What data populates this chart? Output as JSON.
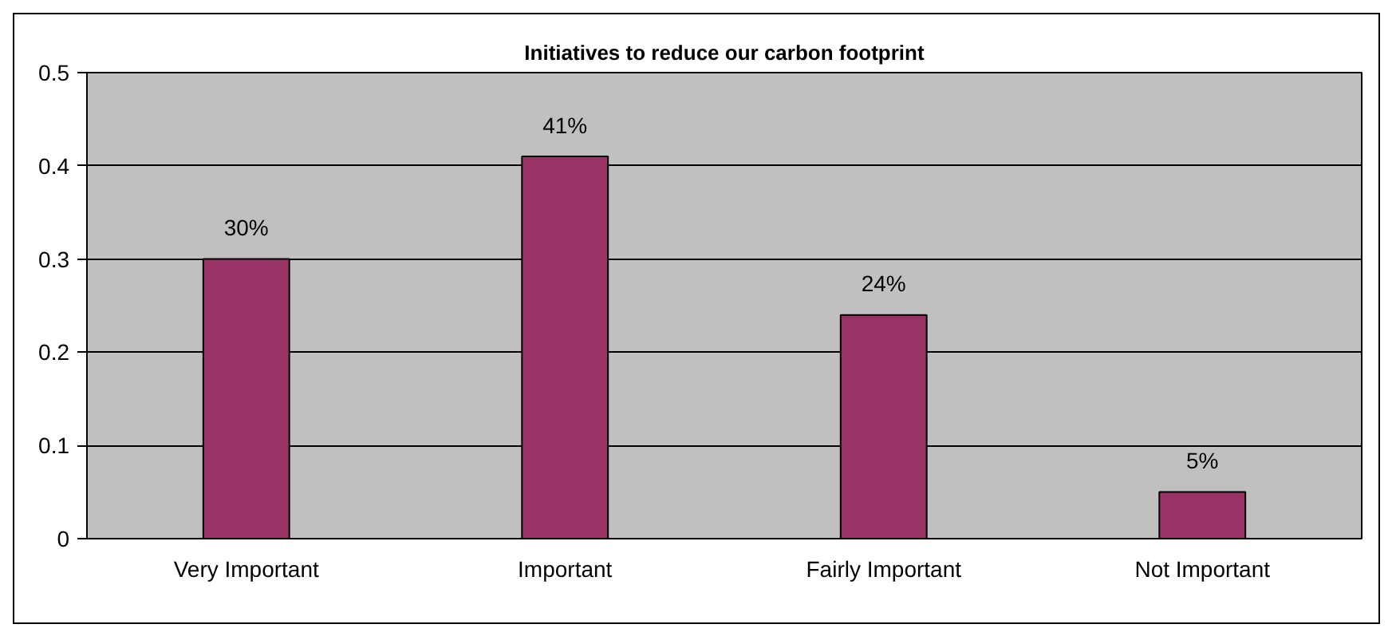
{
  "chart_data": {
    "type": "bar",
    "title": "Initiatives to reduce our carbon footprint",
    "categories": [
      "Very Important",
      "Important",
      "Fairly Important",
      "Not Important"
    ],
    "values": [
      0.3,
      0.41,
      0.24,
      0.05
    ],
    "value_labels": [
      "30%",
      "41%",
      "24%",
      "5%"
    ],
    "color": "#993366",
    "ylim": [
      0,
      0.5
    ],
    "yticks": [
      0,
      0.1,
      0.2,
      0.3,
      0.4,
      0.5
    ],
    "grid": "y"
  }
}
